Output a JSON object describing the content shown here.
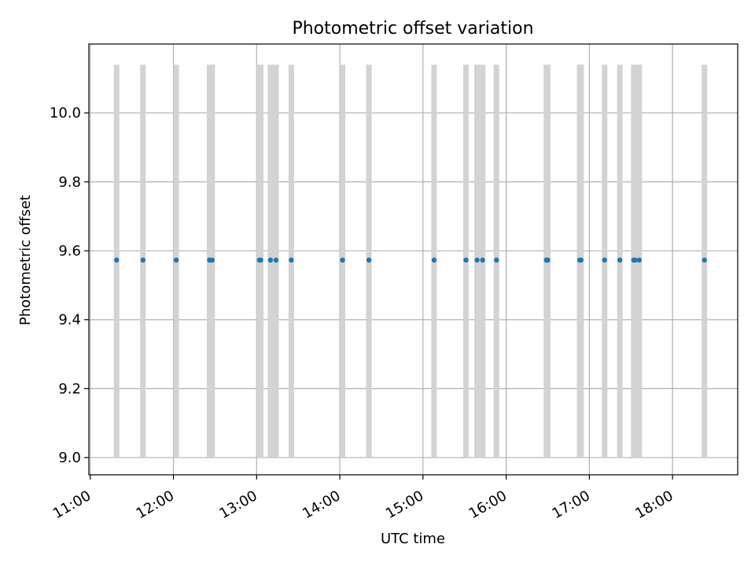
{
  "chart_data": {
    "type": "scatter",
    "title": "Photometric offset variation",
    "xlabel": "UTC time",
    "ylabel": "Photometric offset",
    "xlim": [
      "10:59",
      "18:47"
    ],
    "ylim": [
      8.95,
      10.2
    ],
    "x_ticks": [
      "11:00",
      "12:00",
      "13:00",
      "14:00",
      "15:00",
      "16:00",
      "17:00",
      "18:00"
    ],
    "y_ticks": [
      "9.0",
      "9.2",
      "9.4",
      "9.6",
      "9.8",
      "10.0"
    ],
    "grid": true,
    "span_range": [
      9.0,
      10.14
    ],
    "span_color": "#d3d3d3",
    "point_color": "#1f77b4",
    "series": [
      {
        "name": "Photometric offset",
        "x": [
          "11:19",
          "11:38",
          "12:02",
          "12:26",
          "12:28",
          "13:02",
          "13:03",
          "13:10",
          "13:14",
          "13:25",
          "14:02",
          "14:21",
          "15:08",
          "15:31",
          "15:39",
          "15:43",
          "15:53",
          "16:29",
          "16:30",
          "16:53",
          "16:54",
          "17:11",
          "17:22",
          "17:32",
          "17:33",
          "17:36",
          "18:23"
        ],
        "y": [
          9.573,
          9.573,
          9.573,
          9.573,
          9.573,
          9.573,
          9.573,
          9.573,
          9.573,
          9.573,
          9.573,
          9.573,
          9.573,
          9.573,
          9.573,
          9.573,
          9.573,
          9.573,
          9.573,
          9.573,
          9.573,
          9.573,
          9.573,
          9.573,
          9.573,
          9.573,
          9.573
        ]
      }
    ]
  }
}
